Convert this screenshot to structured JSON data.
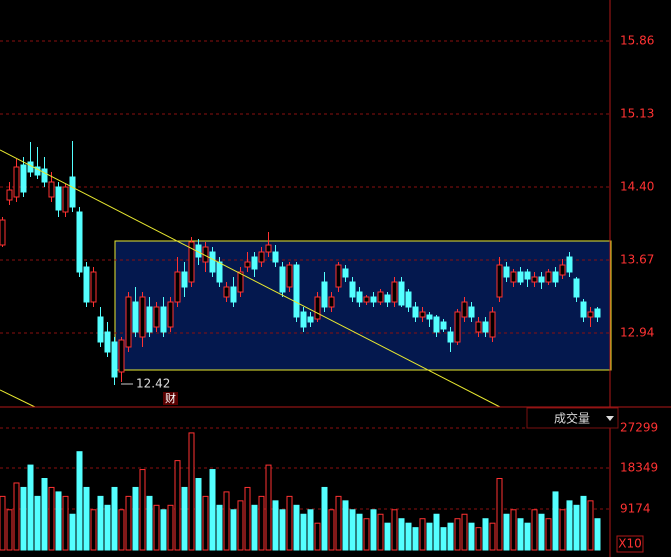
{
  "chart_data": {
    "type": "candlestick",
    "ylim": [
      12.2,
      16.27
    ],
    "yticks": [
      12.94,
      13.67,
      {
        "value": 14.4,
        "label": "14.40"
      },
      15.13,
      15.86
    ],
    "grid": true,
    "up_color": "#ff3232",
    "down_color": "#54ffff",
    "open": [
      13.82,
      14.27,
      14.3,
      14.62,
      14.65,
      14.6,
      14.58,
      14.3,
      14.4,
      14.15,
      14.5,
      14.15,
      13.6,
      13.25,
      13.1,
      12.95,
      12.85,
      12.55,
      12.8,
      13.25,
      12.9,
      13.2,
      13.0,
      13.2,
      13.0,
      13.25,
      13.55,
      13.45,
      13.82,
      13.65,
      13.75,
      13.65,
      13.3,
      13.4,
      13.35,
      13.6,
      13.7,
      13.65,
      13.75,
      13.75,
      13.6,
      13.4,
      13.62,
      13.15,
      13.1,
      13.08,
      13.45,
      13.2,
      13.4,
      13.58,
      13.45,
      13.35,
      13.25,
      13.3,
      13.25,
      13.32,
      13.25,
      13.45,
      13.35,
      13.2,
      13.1,
      13.12,
      13.1,
      13.05,
      12.95,
      12.85,
      13.1,
      13.2,
      12.95,
      13.05,
      12.9,
      13.3,
      13.6,
      13.45,
      13.55,
      13.55,
      13.45,
      13.5,
      13.45,
      13.55,
      13.52,
      13.7,
      13.48,
      13.25,
      13.1,
      13.18
    ],
    "high": [
      14.1,
      14.45,
      14.68,
      14.7,
      14.85,
      14.8,
      14.7,
      14.55,
      14.45,
      14.43,
      14.86,
      14.2,
      13.65,
      13.6,
      13.2,
      13.05,
      12.9,
      12.9,
      13.35,
      13.4,
      13.35,
      13.3,
      13.25,
      13.3,
      13.3,
      13.7,
      13.65,
      13.9,
      13.88,
      13.85,
      13.8,
      13.7,
      13.45,
      13.5,
      13.6,
      13.75,
      13.75,
      13.8,
      13.95,
      13.82,
      13.65,
      13.65,
      13.65,
      13.2,
      13.15,
      13.35,
      13.55,
      13.35,
      13.65,
      13.62,
      13.5,
      13.4,
      13.32,
      13.35,
      13.38,
      13.35,
      13.5,
      13.5,
      13.38,
      13.25,
      13.2,
      13.15,
      13.12,
      13.08,
      13.0,
      13.18,
      13.3,
      13.25,
      13.1,
      13.1,
      13.2,
      13.7,
      13.65,
      13.58,
      13.6,
      13.58,
      13.55,
      13.55,
      13.58,
      13.6,
      13.68,
      13.75,
      13.5,
      13.28,
      13.2,
      13.2
    ],
    "low": [
      13.8,
      14.22,
      14.25,
      14.3,
      14.5,
      14.48,
      14.4,
      14.25,
      14.1,
      14.1,
      14.15,
      13.5,
      13.2,
      13.2,
      12.8,
      12.7,
      12.42,
      12.45,
      12.75,
      12.9,
      12.8,
      12.9,
      12.95,
      12.9,
      12.95,
      13.2,
      13.3,
      13.4,
      13.62,
      13.55,
      13.5,
      13.4,
      13.25,
      13.2,
      13.3,
      13.55,
      13.5,
      13.6,
      13.7,
      13.6,
      13.3,
      13.35,
      13.05,
      12.95,
      13.0,
      13.05,
      13.15,
      13.15,
      13.35,
      13.45,
      13.25,
      13.2,
      13.22,
      13.2,
      13.22,
      13.2,
      13.2,
      13.2,
      13.15,
      13.05,
      13.05,
      13.0,
      12.9,
      12.95,
      12.75,
      12.82,
      13.05,
      13.05,
      12.9,
      12.9,
      12.85,
      13.25,
      13.45,
      13.4,
      13.42,
      13.4,
      13.4,
      13.38,
      13.42,
      13.4,
      13.48,
      13.5,
      13.25,
      13.05,
      13.0,
      13.05
    ],
    "close": [
      14.07,
      14.37,
      14.6,
      14.35,
      14.55,
      14.52,
      14.45,
      14.45,
      14.17,
      14.4,
      14.2,
      13.55,
      13.25,
      13.55,
      12.85,
      12.75,
      12.5,
      12.87,
      13.3,
      12.95,
      13.3,
      12.95,
      13.2,
      12.95,
      13.25,
      13.55,
      13.4,
      13.85,
      13.7,
      13.8,
      13.55,
      13.45,
      13.4,
      13.25,
      13.55,
      13.65,
      13.58,
      13.75,
      13.82,
      13.65,
      13.35,
      13.62,
      13.1,
      13.0,
      13.05,
      13.3,
      13.2,
      13.3,
      13.62,
      13.5,
      13.3,
      13.25,
      13.3,
      13.25,
      13.35,
      13.25,
      13.45,
      13.22,
      13.2,
      13.1,
      13.15,
      13.08,
      12.95,
      12.98,
      12.85,
      13.15,
      13.25,
      13.1,
      13.05,
      12.95,
      13.15,
      13.62,
      13.5,
      13.55,
      13.45,
      13.48,
      13.5,
      13.45,
      13.55,
      13.45,
      13.62,
      13.55,
      13.3,
      13.1,
      13.15,
      13.1
    ],
    "volume": [
      12000,
      9000,
      15000,
      14000,
      19000,
      12000,
      16000,
      14000,
      13000,
      12000,
      8000,
      22000,
      14000,
      9000,
      12000,
      10000,
      14000,
      9000,
      12000,
      14000,
      18000,
      12000,
      10000,
      9000,
      10000,
      20000,
      14000,
      26200,
      16000,
      12000,
      18000,
      10000,
      13000,
      9000,
      11000,
      14000,
      10000,
      12000,
      19000,
      11000,
      9000,
      12000,
      10000,
      8000,
      9000,
      6000,
      14000,
      9000,
      12000,
      11000,
      9000,
      8000,
      7000,
      9000,
      8000,
      6000,
      9000,
      7000,
      6000,
      5000,
      7000,
      6000,
      8000,
      5000,
      6000,
      7000,
      8000,
      6000,
      5000,
      7000,
      6000,
      16000,
      8000,
      9000,
      7000,
      6000,
      9000,
      8000,
      7000,
      13000,
      9000,
      11000,
      10000,
      12000,
      11000,
      7000
    ],
    "volume_ylim": [
      0,
      31330
    ],
    "volume_yticks": [
      9174,
      18349,
      27299
    ],
    "volume_label": "成交量",
    "volume_unit": "X10",
    "low_annotation": 12.42,
    "event_marker": "财"
  }
}
